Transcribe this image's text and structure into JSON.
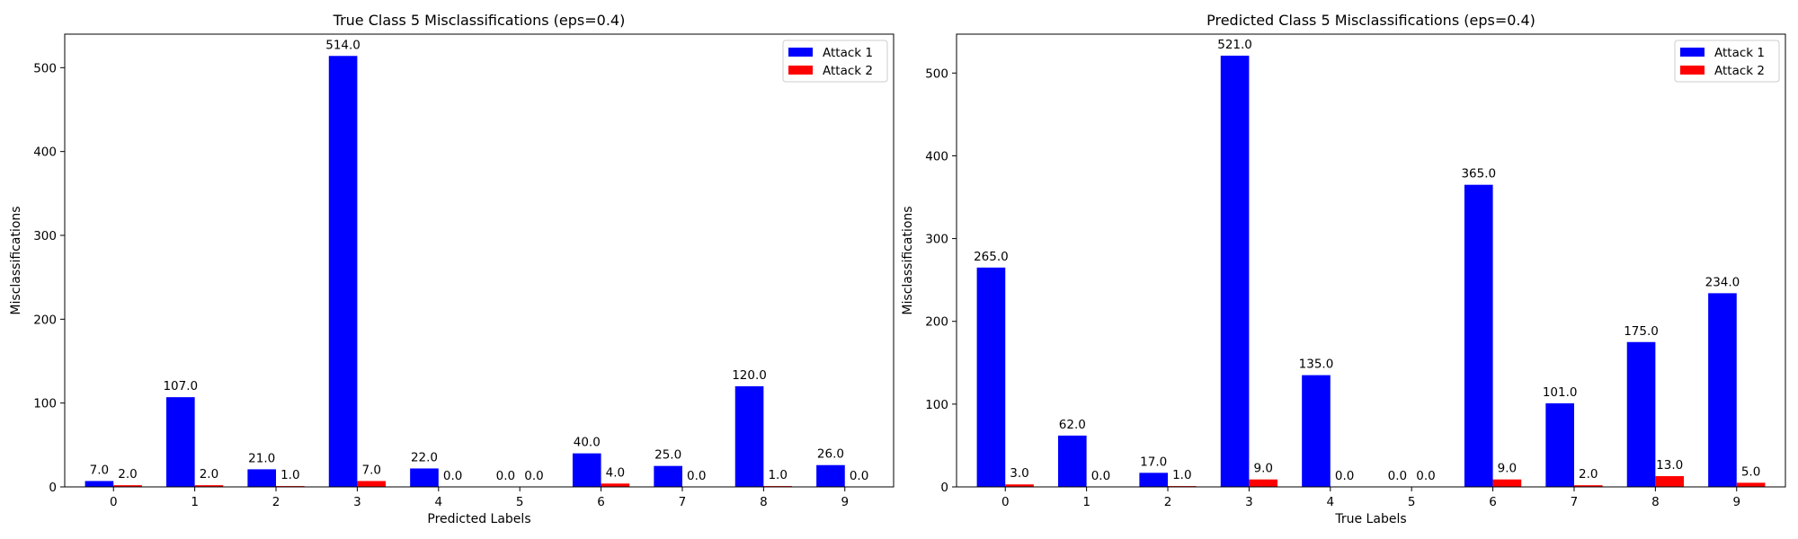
{
  "chart_data": [
    {
      "type": "bar",
      "title": "True Class 5 Misclassifications (eps=0.4)",
      "xlabel": "Predicted Labels",
      "ylabel": "Misclassifications",
      "categories": [
        "0",
        "1",
        "2",
        "3",
        "4",
        "5",
        "6",
        "7",
        "8",
        "9"
      ],
      "ylim": [
        0,
        540
      ],
      "yticks": [
        0,
        100,
        200,
        300,
        400,
        500
      ],
      "legend_position": "top-right",
      "series": [
        {
          "name": "Attack 1",
          "color": "#0000ff",
          "values": [
            7,
            107,
            21,
            514,
            22,
            0,
            40,
            25,
            120,
            26
          ],
          "labels": [
            "7.0",
            "107.0",
            "21.0",
            "514.0",
            "22.0",
            "0.0",
            "40.0",
            "25.0",
            "120.0",
            "26.0"
          ]
        },
        {
          "name": "Attack 2",
          "color": "#ff0000",
          "values": [
            2,
            2,
            1,
            7,
            0,
            0,
            4,
            0,
            1,
            0
          ],
          "labels": [
            "2.0",
            "2.0",
            "1.0",
            "7.0",
            "0.0",
            "0.0",
            "4.0",
            "0.0",
            "1.0",
            "0.0"
          ]
        }
      ]
    },
    {
      "type": "bar",
      "title": "Predicted Class 5 Misclassifications (eps=0.4)",
      "xlabel": "True Labels",
      "ylabel": "Misclassifications",
      "categories": [
        "0",
        "1",
        "2",
        "3",
        "4",
        "5",
        "6",
        "7",
        "8",
        "9"
      ],
      "ylim": [
        0,
        547
      ],
      "yticks": [
        0,
        100,
        200,
        300,
        400,
        500
      ],
      "legend_position": "top-right",
      "series": [
        {
          "name": "Attack 1",
          "color": "#0000ff",
          "values": [
            265,
            62,
            17,
            521,
            135,
            0,
            365,
            101,
            175,
            234
          ],
          "labels": [
            "265.0",
            "62.0",
            "17.0",
            "521.0",
            "135.0",
            "0.0",
            "365.0",
            "101.0",
            "175.0",
            "234.0"
          ]
        },
        {
          "name": "Attack 2",
          "color": "#ff0000",
          "values": [
            3,
            0,
            1,
            9,
            0,
            0,
            9,
            2,
            13,
            5
          ],
          "labels": [
            "3.0",
            "0.0",
            "1.0",
            "9.0",
            "0.0",
            "0.0",
            "9.0",
            "2.0",
            "13.0",
            "5.0"
          ]
        }
      ]
    }
  ]
}
